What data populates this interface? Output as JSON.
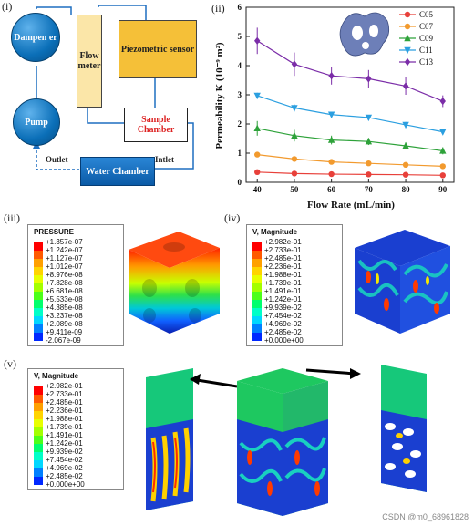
{
  "panels": {
    "i": "(i)",
    "ii": "(ii)",
    "iii": "(iii)",
    "iv": "(iv)",
    "v": "(v)"
  },
  "schematic": {
    "dampener": "Dampen er",
    "pump": "Pump",
    "flowmeter": "Flow meter",
    "piezometric": "Piezometric sensor",
    "sample_chamber": "Sample Chamber",
    "water_chamber": "Water Chamber",
    "outlet": "Outlet",
    "intlet": "Intlet"
  },
  "chart_data": {
    "type": "line",
    "xlabel": "Flow Rate (mL/min)",
    "ylabel": "Permeability K (10⁻⁹ m²)",
    "x": [
      40,
      50,
      60,
      70,
      80,
      90
    ],
    "xlim": [
      37,
      93
    ],
    "ylim": [
      0,
      6
    ],
    "yticks": [
      0,
      1,
      2,
      3,
      4,
      5,
      6
    ],
    "legend": "top-right",
    "series": [
      {
        "name": "C05",
        "color": "#e8403a",
        "marker": "circle",
        "values": [
          0.35,
          0.3,
          0.28,
          0.27,
          0.26,
          0.24
        ],
        "err": [
          0.05,
          0.05,
          0.05,
          0.04,
          0.04,
          0.04
        ]
      },
      {
        "name": "C07",
        "color": "#f29a2e",
        "marker": "circle",
        "values": [
          0.95,
          0.8,
          0.7,
          0.65,
          0.6,
          0.55
        ],
        "err": [
          0.06,
          0.06,
          0.05,
          0.05,
          0.05,
          0.05
        ]
      },
      {
        "name": "C09",
        "color": "#2ea23a",
        "marker": "triangle",
        "values": [
          1.85,
          1.6,
          1.45,
          1.4,
          1.25,
          1.08
        ],
        "err": [
          0.25,
          0.2,
          0.15,
          0.12,
          0.12,
          0.12
        ]
      },
      {
        "name": "C11",
        "color": "#2b9fe0",
        "marker": "triangle-down",
        "values": [
          2.97,
          2.55,
          2.32,
          2.22,
          1.97,
          1.73
        ],
        "err": [
          0.1,
          0.12,
          0.08,
          0.08,
          0.1,
          0.08
        ]
      },
      {
        "name": "C13",
        "color": "#7b2da8",
        "marker": "diamond",
        "values": [
          4.85,
          4.05,
          3.65,
          3.55,
          3.3,
          2.78
        ],
        "err": [
          0.45,
          0.4,
          0.3,
          0.3,
          0.3,
          0.2
        ]
      }
    ]
  },
  "legend_pressure": {
    "title": "PRESSURE",
    "labels": [
      "+1.357e-07",
      "+1.242e-07",
      "+1.127e-07",
      "+1.012e-07",
      "+8.976e-08",
      "+7.828e-08",
      "+6.681e-08",
      "+5.533e-08",
      "+4.385e-08",
      "+3.237e-08",
      "+2.089e-08",
      "+9.411e-09",
      "-2.067e-09"
    ]
  },
  "legend_velocity_iv": {
    "title": "V, Magnitude",
    "labels": [
      "+2.982e-01",
      "+2.733e-01",
      "+2.485e-01",
      "+2.236e-01",
      "+1.988e-01",
      "+1.739e-01",
      "+1.491e-01",
      "+1.242e-01",
      "+9.939e-02",
      "+7.454e-02",
      "+4.969e-02",
      "+2.485e-02",
      "+0.000e+00"
    ]
  },
  "legend_velocity_v": {
    "title": "V, Magnitude",
    "labels": [
      "+2.982e-01",
      "+2.733e-01",
      "+2.485e-01",
      "+2.236e-01",
      "+1.988e-01",
      "+1.739e-01",
      "+1.491e-01",
      "+1.242e-01",
      "+9.939e-02",
      "+7.454e-02",
      "+4.969e-02",
      "+2.485e-02",
      "+0.000e+00"
    ]
  },
  "colormap": [
    "#ff0000",
    "#ff5a00",
    "#ffa000",
    "#ffd400",
    "#e8ff00",
    "#a4ff00",
    "#4cff1a",
    "#00ff6e",
    "#00ffc8",
    "#00d7ff",
    "#0080ff",
    "#0028ff",
    "#0000c8"
  ],
  "watermark": "CSDN @m0_68961828"
}
